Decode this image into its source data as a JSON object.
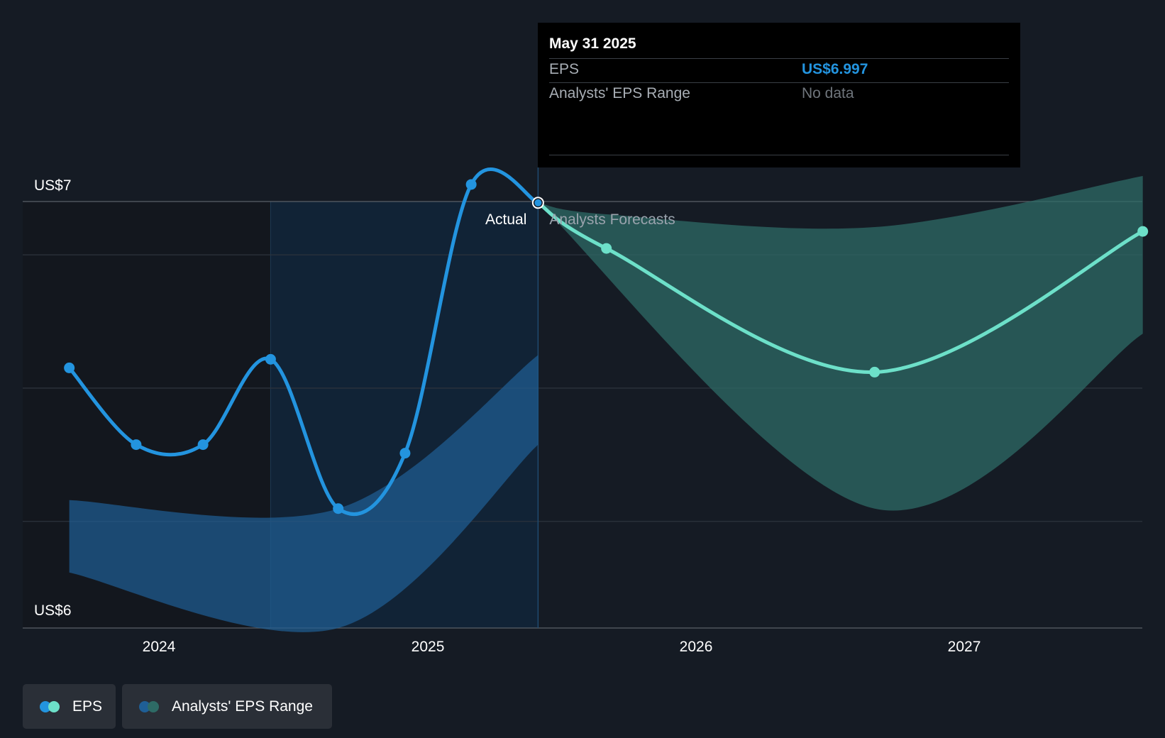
{
  "chart_data": {
    "type": "line",
    "y_axis": {
      "min_label": "US$6",
      "max_label": "US$7",
      "ylim": [
        6.0,
        7.0
      ]
    },
    "x_ticks": [
      "2024",
      "2025",
      "2026",
      "2027"
    ],
    "period_labels": {
      "actual": "Actual",
      "forecast": "Analysts Forecasts"
    },
    "series": [
      {
        "name": "EPS",
        "kind": "actual",
        "color": "#2394df",
        "points": [
          {
            "x": "2023-09-01",
            "y": 6.61
          },
          {
            "x": "2023-12-01",
            "y": 6.43
          },
          {
            "x": "2024-03-01",
            "y": 6.43
          },
          {
            "x": "2024-06-01",
            "y": 6.63
          },
          {
            "x": "2024-09-01",
            "y": 6.28
          },
          {
            "x": "2024-12-01",
            "y": 6.41
          },
          {
            "x": "2025-03-01",
            "y": 7.04
          },
          {
            "x": "2025-05-31",
            "y": 6.997
          }
        ]
      },
      {
        "name": "EPS",
        "kind": "forecast",
        "color": "#6de0c9",
        "points": [
          {
            "x": "2025-05-31",
            "y": 6.997
          },
          {
            "x": "2025-09-01",
            "y": 6.89
          },
          {
            "x": "2026-09-01",
            "y": 6.6
          },
          {
            "x": "2027-09-01",
            "y": 6.93
          }
        ]
      }
    ],
    "ranges": [
      {
        "name": "Analysts' EPS Range",
        "kind": "actual",
        "color": "#1f5f96",
        "upper": [
          {
            "x": "2023-09-01",
            "y": 6.3
          },
          {
            "x": "2024-09-01",
            "y": 6.28
          },
          {
            "x": "2025-05-31",
            "y": 6.64
          }
        ],
        "lower": [
          {
            "x": "2023-09-01",
            "y": 6.13
          },
          {
            "x": "2024-09-01",
            "y": 6.0
          },
          {
            "x": "2025-05-31",
            "y": 6.43
          }
        ]
      },
      {
        "name": "Analysts' EPS Range",
        "kind": "forecast",
        "color": "#2e6b66",
        "upper": [
          {
            "x": "2025-05-31",
            "y": 6.997
          },
          {
            "x": "2025-09-01",
            "y": 6.97
          },
          {
            "x": "2026-09-01",
            "y": 6.94
          },
          {
            "x": "2027-09-01",
            "y": 7.06
          }
        ],
        "lower": [
          {
            "x": "2025-05-31",
            "y": 6.997
          },
          {
            "x": "2026-09-01",
            "y": 6.28
          },
          {
            "x": "2027-09-01",
            "y": 6.69
          }
        ]
      }
    ],
    "grid": true,
    "legend_position": "bottom-left"
  },
  "tooltip": {
    "date": "May 31 2025",
    "rows": [
      {
        "label": "EPS",
        "value": "US$6.997"
      },
      {
        "label": "Analysts' EPS Range",
        "value": "No data"
      }
    ]
  },
  "legend": {
    "items": [
      {
        "label": "EPS",
        "colors": [
          "#2394df",
          "#6de0c9"
        ]
      },
      {
        "label": "Analysts' EPS Range",
        "colors": [
          "#1f5f96",
          "#2e6b66"
        ]
      }
    ]
  }
}
